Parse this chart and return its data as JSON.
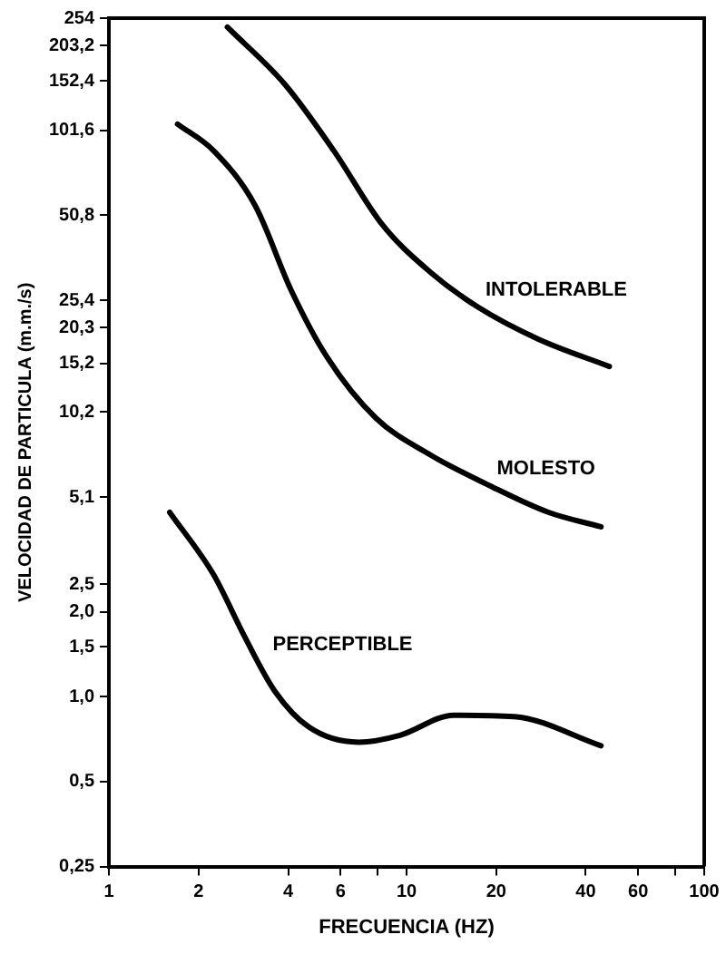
{
  "chart_data": {
    "type": "line",
    "xlabel": "FRECUENCIA (HZ)",
    "ylabel": "VELOCIDAD DE PARTICULA (m.m./s)",
    "log": "xy",
    "grid": false,
    "legend": false,
    "marker": "none",
    "line_style": "solid",
    "xlim": [
      1,
      100
    ],
    "xticks": [
      1,
      2,
      4,
      6,
      {
        "value": 8,
        "label": null
      },
      10,
      20,
      40,
      60,
      {
        "value": 80,
        "label": null
      },
      100
    ],
    "ylim": [
      0.25,
      254
    ],
    "yticks": [
      254,
      {
        "value": 203.2,
        "label": "203,2"
      },
      {
        "value": 152.4,
        "label": "152,4"
      },
      {
        "value": 101.6,
        "label": "101,6"
      },
      {
        "value": 50.8,
        "label": "50,8"
      },
      {
        "value": 25.4,
        "label": "25,4"
      },
      {
        "value": 20.3,
        "label": "20,3"
      },
      {
        "value": 15.2,
        "label": "15,2"
      },
      {
        "value": 10.2,
        "label": "10,2"
      },
      {
        "value": 5.1,
        "label": "5,1"
      },
      {
        "value": 2.5,
        "label": "2,5"
      },
      {
        "value": 2,
        "label": "2,0"
      },
      {
        "value": 1.5,
        "label": "1,5"
      },
      {
        "value": 1,
        "label": "1,0"
      },
      {
        "value": 0.5,
        "label": "0,5"
      },
      {
        "value": 0.25,
        "label": "0,25"
      }
    ],
    "series": [
      {
        "name": "INTOLERABLE",
        "color": "#000000",
        "x": [
          2.5,
          3.9,
          5.7,
          8.3,
          12,
          17.4,
          27.7,
          48
        ],
        "values": [
          236,
          148,
          86,
          47,
          32,
          24,
          18.5,
          14.8
        ]
      },
      {
        "name": "MOLESTO",
        "color": "#000000",
        "x": [
          1.7,
          2.25,
          3.1,
          4.1,
          5.4,
          7.9,
          12,
          19,
          30,
          45
        ],
        "values": [
          107,
          86,
          55,
          27.5,
          16,
          9.7,
          7.2,
          5.6,
          4.5,
          4
        ]
      },
      {
        "name": "PERCEPTIBLE",
        "color": "#000000",
        "x": [
          1.6,
          2.25,
          2.85,
          3.6,
          4.7,
          6.9,
          9.5,
          14.4,
          23,
          45
        ],
        "values": [
          4.5,
          2.7,
          1.64,
          1.05,
          0.78,
          0.69,
          0.73,
          0.86,
          0.85,
          0.67
        ]
      }
    ]
  }
}
